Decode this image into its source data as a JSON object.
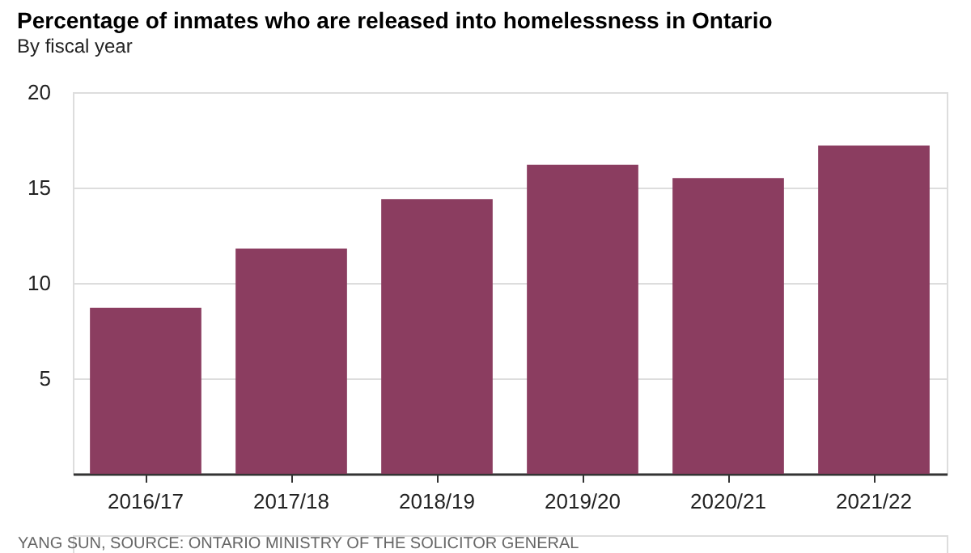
{
  "chart_data": {
    "type": "bar",
    "title": "Percentage of inmates who are released into homelessness in Ontario",
    "subtitle": "By fiscal year",
    "categories": [
      "2016/17",
      "2017/18",
      "2018/19",
      "2019/20",
      "2020/21",
      "2021/22"
    ],
    "values": [
      8.7,
      11.8,
      14.4,
      16.2,
      15.5,
      17.2
    ],
    "color": "#8b3d60",
    "ylim": [
      0,
      20
    ],
    "yticks": [
      5,
      10,
      15,
      20
    ],
    "grid": "y",
    "annotations": [
      "YANG SUN, SOURCE: ONTARIO MINISTRY OF THE SOLICITOR GENERAL"
    ]
  }
}
